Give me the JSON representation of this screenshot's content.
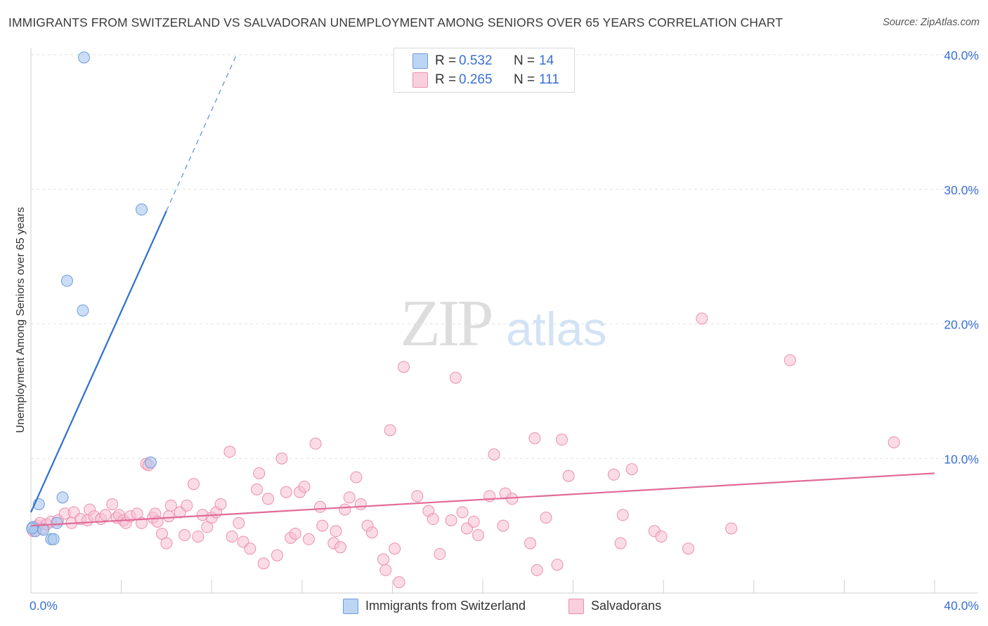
{
  "title": "IMMIGRANTS FROM SWITZERLAND VS SALVADORAN UNEMPLOYMENT AMONG SENIORS OVER 65 YEARS CORRELATION CHART",
  "source": "Source: ZipAtlas.com",
  "watermark": "ZIPatlas",
  "legend": {
    "r_label": "R =",
    "n_label": "N =",
    "rows": [
      {
        "r": "0.532",
        "n": "14"
      },
      {
        "r": "0.265",
        "n": "111"
      }
    ]
  },
  "chart_data": {
    "type": "scatter",
    "title": "IMMIGRANTS FROM SWITZERLAND VS SALVADORAN UNEMPLOYMENT AMONG SENIORS OVER 65 YEARS CORRELATION CHART",
    "xlabel": "",
    "ylabel": "Unemployment Among Seniors over 65 years",
    "xlim": [
      0,
      40
    ],
    "ylim": [
      0,
      40
    ],
    "x_tick_labels": [
      "0.0%",
      "40.0%"
    ],
    "y_ticks": [
      10,
      20,
      30,
      40
    ],
    "y_tick_labels": [
      "10.0%",
      "20.0%",
      "30.0%",
      "40.0%"
    ],
    "grid": true,
    "colors": {
      "swiss_fill": "#a9c8f0",
      "swiss_stroke": "#6d9ad8",
      "swiss_line": "#2f6fd0",
      "salv_fill": "#f7bfd1",
      "salv_stroke": "#ea8fb0",
      "salv_line": "#e06b98",
      "tick_label": "#3a6fd8"
    },
    "series": [
      {
        "name": "Immigrants from Switzerland",
        "R": 0.532,
        "N": 14,
        "trend": {
          "x0": 0.0,
          "y0": 6.0,
          "x1": 6.0,
          "y1": 28.4,
          "x_dash_end": 9.1,
          "y_dash_end": 40.0
        },
        "points": [
          [
            0.1,
            4.9
          ],
          [
            0.2,
            4.6
          ],
          [
            0.35,
            6.6
          ],
          [
            0.55,
            4.7
          ],
          [
            0.9,
            4.0
          ],
          [
            1.0,
            4.0
          ],
          [
            1.15,
            5.2
          ],
          [
            1.4,
            7.1
          ],
          [
            1.6,
            23.2
          ],
          [
            2.3,
            21.0
          ],
          [
            2.35,
            39.8
          ],
          [
            4.9,
            28.5
          ],
          [
            5.3,
            9.7
          ],
          [
            0.05,
            4.8
          ]
        ]
      },
      {
        "name": "Salvadorans",
        "R": 0.265,
        "N": 111,
        "trend": {
          "x0": 0.0,
          "y0": 5.0,
          "x1": 40.0,
          "y1": 8.9
        },
        "points": [
          [
            0.1,
            4.6
          ],
          [
            0.3,
            5.0
          ],
          [
            0.4,
            5.2
          ],
          [
            0.5,
            4.8
          ],
          [
            0.7,
            5.1
          ],
          [
            0.9,
            5.3
          ],
          [
            1.2,
            5.4
          ],
          [
            1.5,
            5.9
          ],
          [
            1.8,
            5.2
          ],
          [
            1.9,
            6.0
          ],
          [
            2.2,
            5.5
          ],
          [
            2.5,
            5.4
          ],
          [
            2.6,
            6.2
          ],
          [
            2.8,
            5.7
          ],
          [
            3.1,
            5.5
          ],
          [
            3.3,
            5.8
          ],
          [
            3.6,
            6.6
          ],
          [
            3.8,
            5.6
          ],
          [
            3.9,
            5.8
          ],
          [
            4.1,
            5.4
          ],
          [
            4.2,
            5.2
          ],
          [
            4.4,
            5.7
          ],
          [
            4.7,
            5.9
          ],
          [
            4.9,
            5.2
          ],
          [
            5.1,
            9.6
          ],
          [
            5.2,
            9.5
          ],
          [
            5.4,
            5.6
          ],
          [
            5.5,
            5.9
          ],
          [
            5.6,
            5.3
          ],
          [
            5.8,
            4.4
          ],
          [
            6.0,
            3.7
          ],
          [
            6.1,
            5.7
          ],
          [
            6.2,
            6.5
          ],
          [
            6.6,
            6.0
          ],
          [
            6.8,
            4.3
          ],
          [
            6.9,
            6.5
          ],
          [
            7.2,
            8.1
          ],
          [
            7.4,
            4.2
          ],
          [
            7.6,
            5.8
          ],
          [
            7.8,
            4.9
          ],
          [
            8.0,
            5.6
          ],
          [
            8.2,
            6.0
          ],
          [
            8.4,
            6.6
          ],
          [
            8.8,
            10.5
          ],
          [
            8.9,
            4.2
          ],
          [
            9.2,
            5.2
          ],
          [
            9.4,
            3.8
          ],
          [
            9.7,
            3.3
          ],
          [
            10.0,
            7.7
          ],
          [
            10.1,
            8.9
          ],
          [
            10.3,
            2.2
          ],
          [
            10.5,
            7.0
          ],
          [
            10.9,
            2.8
          ],
          [
            11.1,
            10.0
          ],
          [
            11.3,
            7.5
          ],
          [
            11.5,
            4.1
          ],
          [
            11.7,
            4.4
          ],
          [
            11.9,
            7.5
          ],
          [
            12.1,
            7.9
          ],
          [
            12.3,
            4.0
          ],
          [
            12.6,
            11.1
          ],
          [
            12.9,
            5.0
          ],
          [
            12.8,
            6.4
          ],
          [
            13.4,
            3.7
          ],
          [
            13.5,
            4.6
          ],
          [
            13.7,
            3.4
          ],
          [
            13.9,
            6.2
          ],
          [
            14.1,
            7.1
          ],
          [
            14.4,
            8.6
          ],
          [
            14.6,
            6.6
          ],
          [
            14.9,
            5.0
          ],
          [
            15.1,
            4.5
          ],
          [
            15.6,
            2.5
          ],
          [
            15.7,
            1.7
          ],
          [
            15.9,
            12.1
          ],
          [
            16.1,
            3.3
          ],
          [
            16.3,
            0.8
          ],
          [
            16.5,
            16.8
          ],
          [
            17.1,
            7.2
          ],
          [
            17.6,
            6.1
          ],
          [
            17.8,
            5.5
          ],
          [
            18.1,
            2.9
          ],
          [
            18.6,
            5.4
          ],
          [
            18.8,
            16.0
          ],
          [
            19.1,
            6.0
          ],
          [
            19.3,
            4.8
          ],
          [
            19.6,
            5.3
          ],
          [
            19.8,
            4.3
          ],
          [
            20.3,
            7.2
          ],
          [
            20.5,
            10.3
          ],
          [
            20.9,
            5.0
          ],
          [
            21.0,
            7.4
          ],
          [
            21.3,
            7.0
          ],
          [
            22.1,
            3.7
          ],
          [
            22.3,
            11.5
          ],
          [
            22.4,
            1.7
          ],
          [
            22.8,
            5.6
          ],
          [
            23.3,
            2.1
          ],
          [
            23.5,
            11.4
          ],
          [
            23.8,
            8.7
          ],
          [
            25.8,
            8.8
          ],
          [
            26.1,
            3.7
          ],
          [
            26.2,
            5.8
          ],
          [
            26.6,
            9.2
          ],
          [
            27.6,
            4.6
          ],
          [
            27.9,
            4.2
          ],
          [
            29.1,
            3.3
          ],
          [
            29.7,
            20.4
          ],
          [
            31.0,
            4.8
          ],
          [
            33.6,
            17.3
          ],
          [
            38.2,
            11.2
          ]
        ]
      }
    ]
  },
  "bottom_legend": [
    {
      "label": "Immigrants from Switzerland"
    },
    {
      "label": "Salvadorans"
    }
  ]
}
